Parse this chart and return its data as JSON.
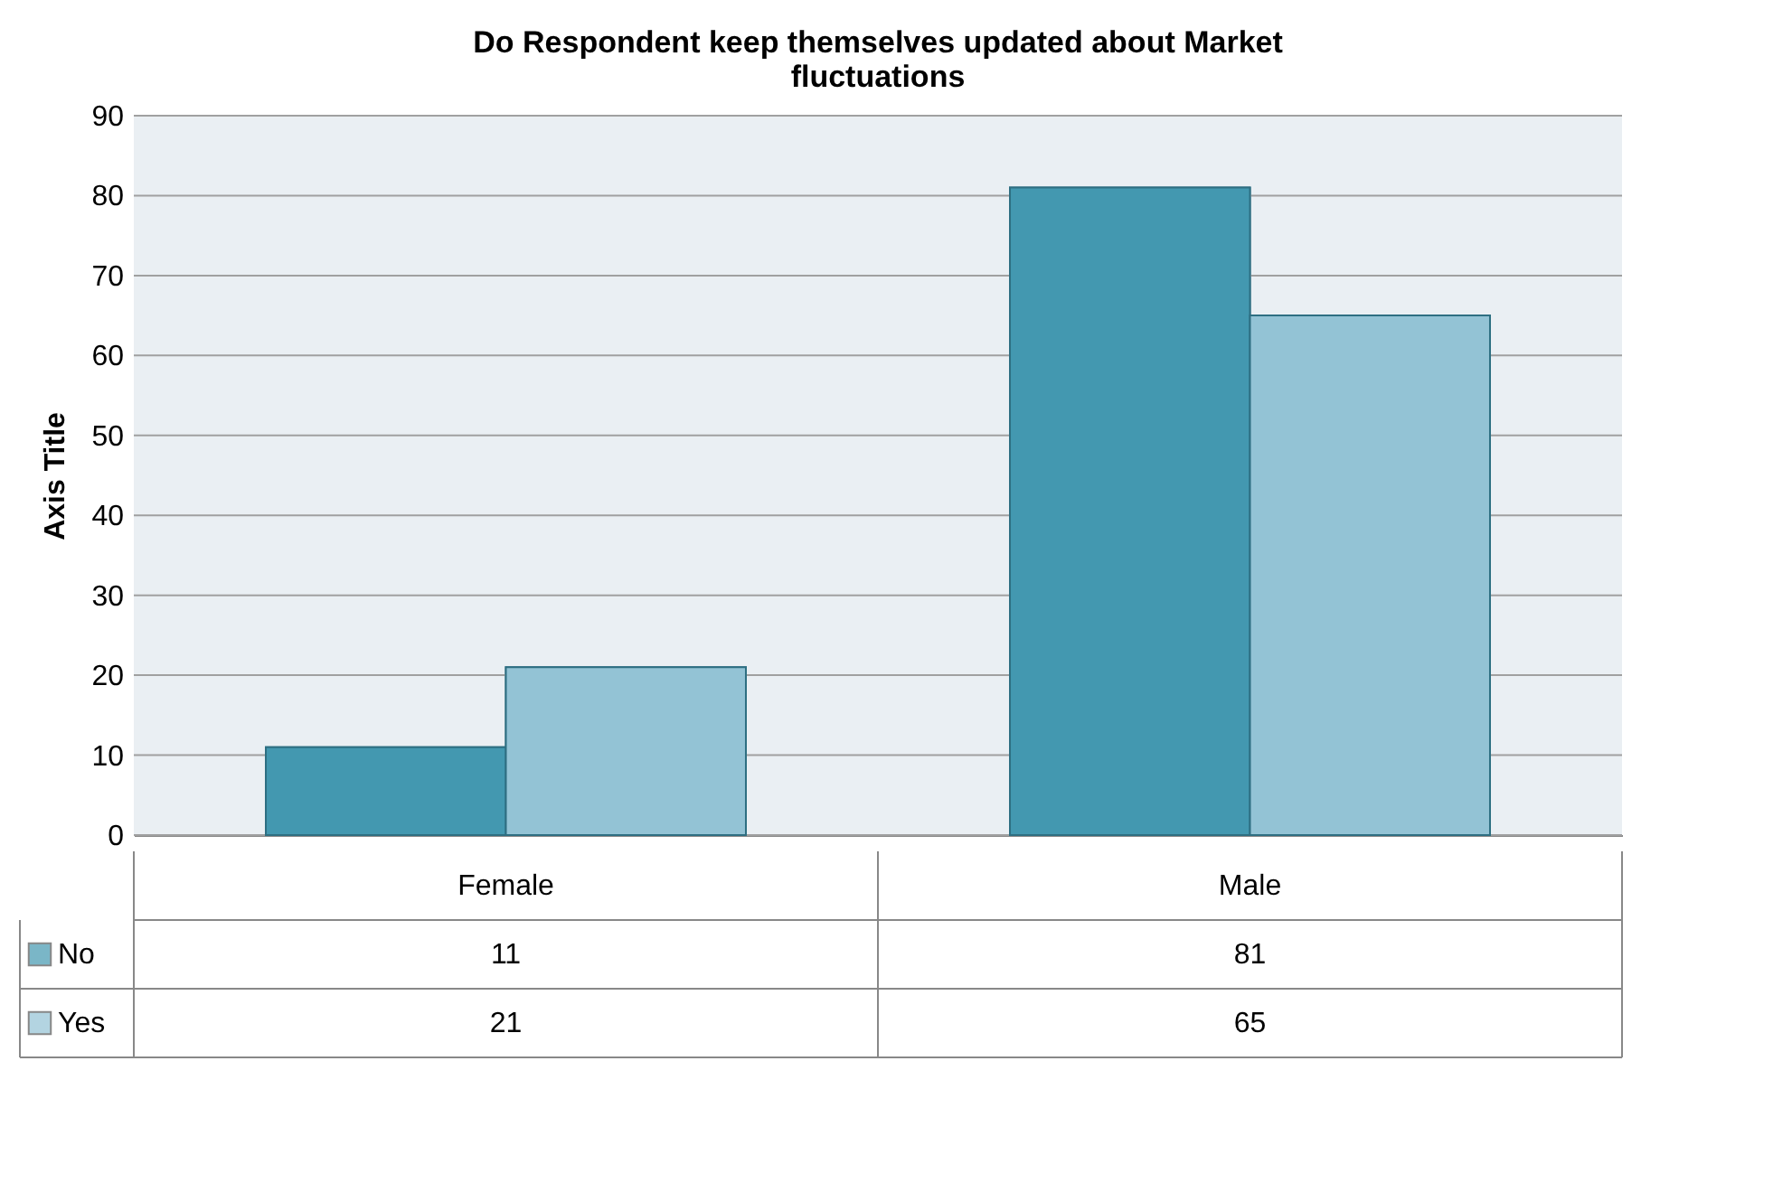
{
  "chart_data": {
    "type": "bar",
    "title": "Do Respondent keep themselves updated about Market fluctuations",
    "ylabel": "Axis Title",
    "categories": [
      "Female",
      "Male"
    ],
    "series": [
      {
        "name": "No",
        "color": "#4398b0",
        "values": [
          11,
          81
        ]
      },
      {
        "name": "Yes",
        "color": "#93c3d5",
        "values": [
          21,
          65
        ]
      }
    ],
    "ylim": [
      0,
      90
    ],
    "yticks": [
      0,
      10,
      20,
      30,
      40,
      50,
      60,
      70,
      80,
      90
    ],
    "grid": "y",
    "data_labels": true,
    "legend": "bottom left"
  }
}
